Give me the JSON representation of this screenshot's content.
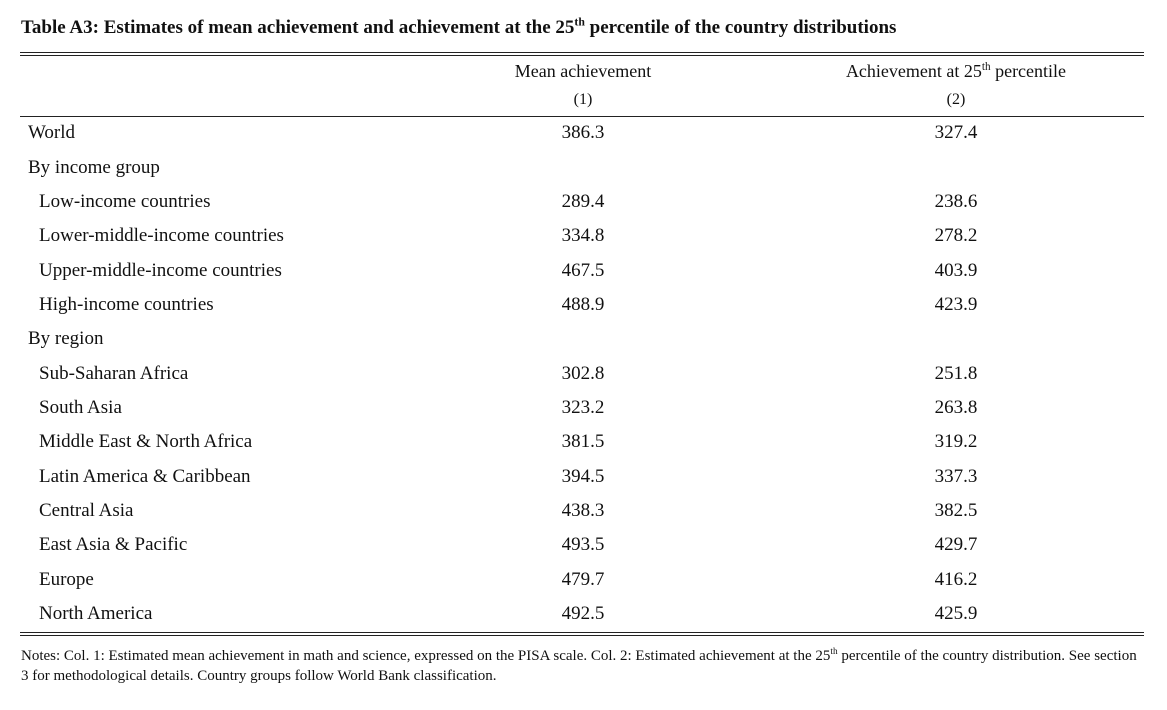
{
  "table": {
    "title_prefix": "Table A3: Estimates of mean achievement and achievement at the 25",
    "title_sup": "th",
    "title_suffix": " percentile of the country distributions",
    "col1_header": "Mean achievement",
    "col1_num": "(1)",
    "col2_header_prefix": "Achievement at 25",
    "col2_header_sup": "th",
    "col2_header_suffix": " percentile",
    "col2_num": "(2)",
    "rows": [
      {
        "label": "World",
        "mean": "386.3",
        "p25": "327.4"
      },
      {
        "label": "By income group",
        "mean": "",
        "p25": ""
      },
      {
        "label": "Low-income countries",
        "mean": "289.4",
        "p25": "238.6"
      },
      {
        "label": "Lower-middle-income countries",
        "mean": "334.8",
        "p25": "278.2"
      },
      {
        "label": "Upper-middle-income countries",
        "mean": "467.5",
        "p25": "403.9"
      },
      {
        "label": "High-income countries",
        "mean": "488.9",
        "p25": "423.9"
      },
      {
        "label": "By region",
        "mean": "",
        "p25": ""
      },
      {
        "label": "Sub-Saharan Africa",
        "mean": "302.8",
        "p25": "251.8"
      },
      {
        "label": "South Asia",
        "mean": "323.2",
        "p25": "263.8"
      },
      {
        "label": "Middle East & North Africa",
        "mean": "381.5",
        "p25": "319.2"
      },
      {
        "label": "Latin America & Caribbean",
        "mean": "394.5",
        "p25": "337.3"
      },
      {
        "label": "Central Asia",
        "mean": "438.3",
        "p25": "382.5"
      },
      {
        "label": "East Asia & Pacific",
        "mean": "493.5",
        "p25": "429.7"
      },
      {
        "label": "Europe",
        "mean": "479.7",
        "p25": "416.2"
      },
      {
        "label": "North America",
        "mean": "492.5",
        "p25": "425.9"
      }
    ]
  },
  "notes": {
    "prefix": "Notes: Col. 1: Estimated mean achievement in math and science, expressed on the PISA scale. Col. 2: Estimated achievement at the 25",
    "sup": "th",
    "suffix": " percentile of the country distribution. See section 3 for methodological details. Country groups follow World Bank classification."
  }
}
